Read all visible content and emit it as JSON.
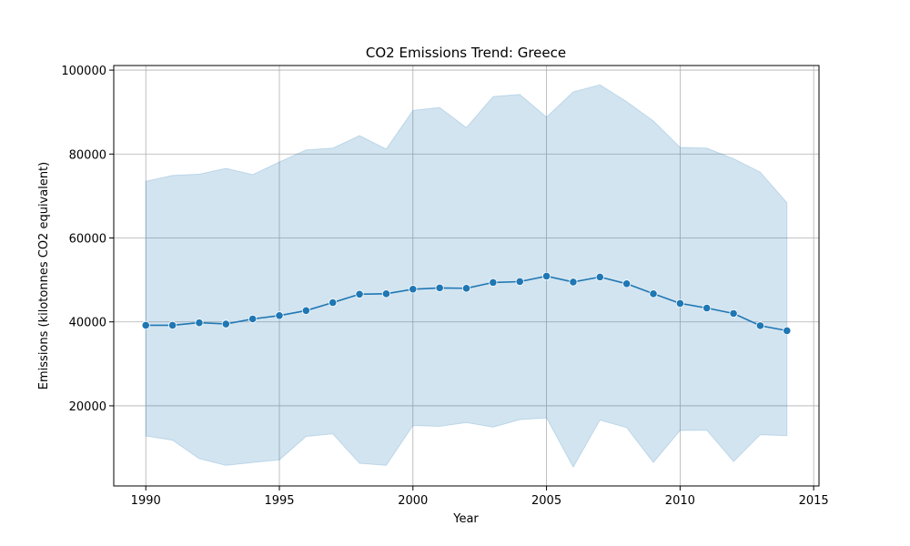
{
  "chart_data": {
    "type": "line",
    "title": "CO2 Emissions Trend: Greece",
    "xlabel": "Year",
    "ylabel": "Emissions (kilotonnes CO2 equivalent)",
    "xlim": [
      1988.8,
      2015.2
    ],
    "ylim": [
      900,
      101100
    ],
    "xticks": [
      1990,
      1995,
      2000,
      2005,
      2010,
      2015
    ],
    "yticks": [
      20000,
      40000,
      60000,
      80000,
      100000
    ],
    "grid": true,
    "colors": {
      "line": "#1f77b4",
      "band": "#1f77b4",
      "grid": "#b0b0b0"
    },
    "series": [
      {
        "x": [
          1990,
          1991,
          1992,
          1993,
          1994,
          1995,
          1996,
          1997,
          1998,
          1999,
          2000,
          2001,
          2002,
          2003,
          2004,
          2005,
          2006,
          2007,
          2008,
          2009,
          2010,
          2011,
          2012,
          2013,
          2014
        ],
        "values": [
          39200,
          39200,
          39800,
          39500,
          40700,
          41500,
          42700,
          44600,
          46600,
          46700,
          47800,
          48100,
          48000,
          49400,
          49600,
          50900,
          49500,
          50700,
          49100,
          46700,
          44400,
          43300,
          42000,
          39100,
          37900
        ],
        "band_upper": [
          73500,
          74900,
          75200,
          76600,
          75100,
          78100,
          81000,
          81400,
          84400,
          81200,
          90400,
          91100,
          86300,
          93700,
          94200,
          88800,
          94800,
          96500,
          92500,
          87900,
          81600,
          81400,
          78900,
          75700,
          68400
        ],
        "band_lower": [
          12800,
          11800,
          7400,
          5800,
          6500,
          7100,
          12700,
          13300,
          6300,
          5800,
          15300,
          15100,
          16000,
          14900,
          16700,
          17100,
          5400,
          16600,
          14800,
          6500,
          14100,
          14200,
          6700,
          13100,
          12900
        ]
      }
    ]
  }
}
